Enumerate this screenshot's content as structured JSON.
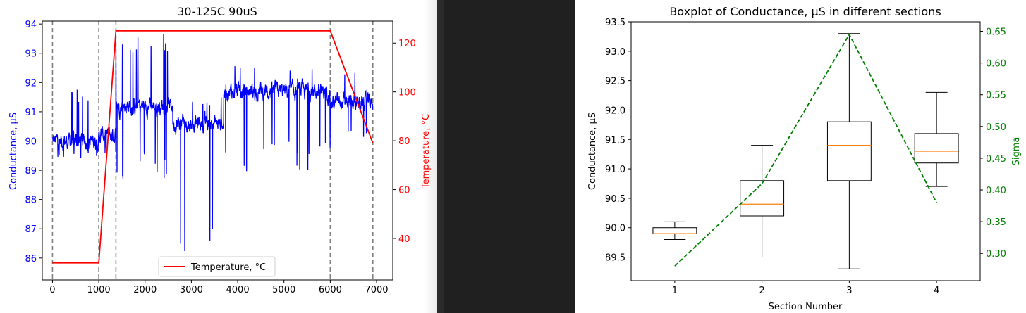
{
  "chart_data": [
    {
      "type": "line",
      "title": "30-125C 90uS",
      "xlabel": "",
      "ylabel": "Conductance, µS",
      "ylabel_right": "Temperature, °C",
      "xlim": [
        -220,
        7350
      ],
      "ylim": [
        85.25,
        94.1
      ],
      "ylim_right": [
        23,
        129
      ],
      "x_ticks": [
        "0",
        "1000",
        "2000",
        "3000",
        "4000",
        "5000",
        "6000",
        "7000"
      ],
      "y_ticks": [
        "86",
        "87",
        "88",
        "89",
        "90",
        "91",
        "92",
        "93",
        "94"
      ],
      "y_right_ticks": [
        "40",
        "60",
        "80",
        "100",
        "120"
      ],
      "section_boundaries": [
        0,
        1000,
        1370,
        6000,
        6920
      ],
      "legend": {
        "entries": [
          "Temperature, °C"
        ],
        "placement": "lower center"
      },
      "series": [
        {
          "axis": "left",
          "color": "#0000ff",
          "segments": [
            {
              "x_start": 0,
              "x_end": 1000,
              "mean": 90.0,
              "min": 89.4,
              "max": 91.9
            },
            {
              "x_start": 1000,
              "x_end": 1370,
              "mean": 90.2,
              "min": 89.5,
              "max": 91.8
            },
            {
              "x_start": 1370,
              "x_end": 2600,
              "mean": 91.2,
              "min": 88.7,
              "max": 93.7
            },
            {
              "x_start": 2600,
              "x_end": 3700,
              "mean": 90.6,
              "min": 85.9,
              "max": 91.5
            },
            {
              "x_start": 3700,
              "x_end": 6000,
              "mean": 91.7,
              "min": 88.9,
              "max": 92.6
            },
            {
              "x_start": 6000,
              "x_end": 6920,
              "mean": 91.3,
              "min": 90.0,
              "max": 92.5
            }
          ]
        },
        {
          "name": "Temperature, °C",
          "axis": "right",
          "color": "#ff0000",
          "x": [
            0,
            1000,
            1370,
            6000,
            6920
          ],
          "y": [
            30,
            30,
            125,
            125,
            79
          ]
        }
      ]
    },
    {
      "type": "box",
      "title": "Boxplot of Conductance, µS in different sections",
      "xlabel": "Section Number",
      "ylabel": "Conductance, µS",
      "ylabel_right": "Sigma",
      "xlim": [
        0.5,
        4.5
      ],
      "ylim": [
        89.1,
        93.5
      ],
      "ylim_right": [
        0.257,
        0.665
      ],
      "x_ticks": [
        "1",
        "2",
        "3",
        "4"
      ],
      "y_ticks": [
        "89.5",
        "90.0",
        "90.5",
        "91.0",
        "91.5",
        "92.0",
        "92.5",
        "93.0",
        "93.5"
      ],
      "y_right_ticks": [
        "0.30",
        "0.35",
        "0.40",
        "0.45",
        "0.50",
        "0.55",
        "0.60",
        "0.65"
      ],
      "boxes": [
        {
          "section": 1,
          "whisker_low": 89.8,
          "q1": 89.9,
          "median": 89.9,
          "q3": 90.0,
          "whisker_high": 90.1
        },
        {
          "section": 2,
          "whisker_low": 89.5,
          "q1": 90.2,
          "median": 90.4,
          "q3": 90.8,
          "whisker_high": 91.4
        },
        {
          "section": 3,
          "whisker_low": 89.3,
          "q1": 90.8,
          "median": 91.4,
          "q3": 91.8,
          "whisker_high": 93.3
        },
        {
          "section": 4,
          "whisker_low": 90.7,
          "q1": 91.1,
          "median": 91.3,
          "q3": 91.6,
          "whisker_high": 92.3
        }
      ],
      "sigma_series": {
        "axis": "right",
        "color": "#008000",
        "style": "dashed",
        "x": [
          1,
          2,
          3,
          4
        ],
        "y": [
          0.28,
          0.41,
          0.645,
          0.38
        ]
      },
      "colors": {
        "box": "#000000",
        "median": "#ff7f0e"
      }
    }
  ]
}
